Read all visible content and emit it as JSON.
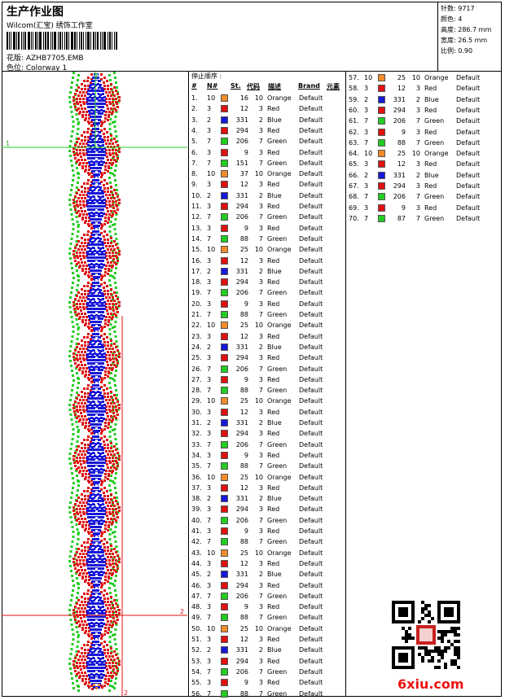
{
  "header": {
    "title": "生产作业图",
    "company": "Wilcom(汇宝) 绣饰工作室",
    "design_label": "花版: AZHB7705.EMB",
    "colorway_label": "色位: Colorway 1"
  },
  "stats": {
    "stitches": "针数: 9717",
    "colors": "颜色: 4",
    "height": "高度: 286.7 mm",
    "width": "宽度: 26.5 mm",
    "scale": "比例: 0.90"
  },
  "guides": {
    "top_green": "1",
    "mid_green": "1",
    "bottom_red_right": "2",
    "bottom_red_center": "2"
  },
  "table": {
    "title": "停止顺序 :",
    "col_num": "#",
    "col_n": "N#",
    "col_st": "St.",
    "col_code": "代码",
    "col_desc": "描述",
    "col_brand": "Brand",
    "col_elem": "元素"
  },
  "colors": {
    "Orange": "#f08c2c",
    "Red": "#e01010",
    "Blue": "#1818d8",
    "Green": "#22cc22"
  },
  "stops": [
    {
      "no": "1.",
      "n": "10",
      "code": "16",
      "st": "10",
      "desc": "Orange",
      "brand": "Default"
    },
    {
      "no": "2.",
      "n": "3",
      "code": "12",
      "st": "3",
      "desc": "Red",
      "brand": "Default"
    },
    {
      "no": "3.",
      "n": "2",
      "code": "331",
      "st": "2",
      "desc": "Blue",
      "brand": "Default"
    },
    {
      "no": "4.",
      "n": "3",
      "code": "294",
      "st": "3",
      "desc": "Red",
      "brand": "Default"
    },
    {
      "no": "5.",
      "n": "7",
      "code": "206",
      "st": "7",
      "desc": "Green",
      "brand": "Default"
    },
    {
      "no": "6.",
      "n": "3",
      "code": "9",
      "st": "3",
      "desc": "Red",
      "brand": "Default"
    },
    {
      "no": "7.",
      "n": "7",
      "code": "151",
      "st": "7",
      "desc": "Green",
      "brand": "Default"
    },
    {
      "no": "8.",
      "n": "10",
      "code": "37",
      "st": "10",
      "desc": "Orange",
      "brand": "Default"
    },
    {
      "no": "9.",
      "n": "3",
      "code": "12",
      "st": "3",
      "desc": "Red",
      "brand": "Default"
    },
    {
      "no": "10.",
      "n": "2",
      "code": "331",
      "st": "2",
      "desc": "Blue",
      "brand": "Default"
    },
    {
      "no": "11.",
      "n": "3",
      "code": "294",
      "st": "3",
      "desc": "Red",
      "brand": "Default"
    },
    {
      "no": "12.",
      "n": "7",
      "code": "206",
      "st": "7",
      "desc": "Green",
      "brand": "Default"
    },
    {
      "no": "13.",
      "n": "3",
      "code": "9",
      "st": "3",
      "desc": "Red",
      "brand": "Default"
    },
    {
      "no": "14.",
      "n": "7",
      "code": "88",
      "st": "7",
      "desc": "Green",
      "brand": "Default"
    },
    {
      "no": "15.",
      "n": "10",
      "code": "25",
      "st": "10",
      "desc": "Orange",
      "brand": "Default"
    },
    {
      "no": "16.",
      "n": "3",
      "code": "12",
      "st": "3",
      "desc": "Red",
      "brand": "Default"
    },
    {
      "no": "17.",
      "n": "2",
      "code": "331",
      "st": "2",
      "desc": "Blue",
      "brand": "Default"
    },
    {
      "no": "18.",
      "n": "3",
      "code": "294",
      "st": "3",
      "desc": "Red",
      "brand": "Default"
    },
    {
      "no": "19.",
      "n": "7",
      "code": "206",
      "st": "7",
      "desc": "Green",
      "brand": "Default"
    },
    {
      "no": "20.",
      "n": "3",
      "code": "9",
      "st": "3",
      "desc": "Red",
      "brand": "Default"
    },
    {
      "no": "21.",
      "n": "7",
      "code": "88",
      "st": "7",
      "desc": "Green",
      "brand": "Default"
    },
    {
      "no": "22.",
      "n": "10",
      "code": "25",
      "st": "10",
      "desc": "Orange",
      "brand": "Default"
    },
    {
      "no": "23.",
      "n": "3",
      "code": "12",
      "st": "3",
      "desc": "Red",
      "brand": "Default"
    },
    {
      "no": "24.",
      "n": "2",
      "code": "331",
      "st": "2",
      "desc": "Blue",
      "brand": "Default"
    },
    {
      "no": "25.",
      "n": "3",
      "code": "294",
      "st": "3",
      "desc": "Red",
      "brand": "Default"
    },
    {
      "no": "26.",
      "n": "7",
      "code": "206",
      "st": "7",
      "desc": "Green",
      "brand": "Default"
    },
    {
      "no": "27.",
      "n": "3",
      "code": "9",
      "st": "3",
      "desc": "Red",
      "brand": "Default"
    },
    {
      "no": "28.",
      "n": "7",
      "code": "88",
      "st": "7",
      "desc": "Green",
      "brand": "Default"
    },
    {
      "no": "29.",
      "n": "10",
      "code": "25",
      "st": "10",
      "desc": "Orange",
      "brand": "Default"
    },
    {
      "no": "30.",
      "n": "3",
      "code": "12",
      "st": "3",
      "desc": "Red",
      "brand": "Default"
    },
    {
      "no": "31.",
      "n": "2",
      "code": "331",
      "st": "2",
      "desc": "Blue",
      "brand": "Default"
    },
    {
      "no": "32.",
      "n": "3",
      "code": "294",
      "st": "3",
      "desc": "Red",
      "brand": "Default"
    },
    {
      "no": "33.",
      "n": "7",
      "code": "206",
      "st": "7",
      "desc": "Green",
      "brand": "Default"
    },
    {
      "no": "34.",
      "n": "3",
      "code": "9",
      "st": "3",
      "desc": "Red",
      "brand": "Default"
    },
    {
      "no": "35.",
      "n": "7",
      "code": "88",
      "st": "7",
      "desc": "Green",
      "brand": "Default"
    },
    {
      "no": "36.",
      "n": "10",
      "code": "25",
      "st": "10",
      "desc": "Orange",
      "brand": "Default"
    },
    {
      "no": "37.",
      "n": "3",
      "code": "12",
      "st": "3",
      "desc": "Red",
      "brand": "Default"
    },
    {
      "no": "38.",
      "n": "2",
      "code": "331",
      "st": "2",
      "desc": "Blue",
      "brand": "Default"
    },
    {
      "no": "39.",
      "n": "3",
      "code": "294",
      "st": "3",
      "desc": "Red",
      "brand": "Default"
    },
    {
      "no": "40.",
      "n": "7",
      "code": "206",
      "st": "7",
      "desc": "Green",
      "brand": "Default"
    },
    {
      "no": "41.",
      "n": "3",
      "code": "9",
      "st": "3",
      "desc": "Red",
      "brand": "Default"
    },
    {
      "no": "42.",
      "n": "7",
      "code": "88",
      "st": "7",
      "desc": "Green",
      "brand": "Default"
    },
    {
      "no": "43.",
      "n": "10",
      "code": "25",
      "st": "10",
      "desc": "Orange",
      "brand": "Default"
    },
    {
      "no": "44.",
      "n": "3",
      "code": "12",
      "st": "3",
      "desc": "Red",
      "brand": "Default"
    },
    {
      "no": "45.",
      "n": "2",
      "code": "331",
      "st": "2",
      "desc": "Blue",
      "brand": "Default"
    },
    {
      "no": "46.",
      "n": "3",
      "code": "294",
      "st": "3",
      "desc": "Red",
      "brand": "Default"
    },
    {
      "no": "47.",
      "n": "7",
      "code": "206",
      "st": "7",
      "desc": "Green",
      "brand": "Default"
    },
    {
      "no": "48.",
      "n": "3",
      "code": "9",
      "st": "3",
      "desc": "Red",
      "brand": "Default"
    },
    {
      "no": "49.",
      "n": "7",
      "code": "88",
      "st": "7",
      "desc": "Green",
      "brand": "Default"
    },
    {
      "no": "50.",
      "n": "10",
      "code": "25",
      "st": "10",
      "desc": "Orange",
      "brand": "Default"
    },
    {
      "no": "51.",
      "n": "3",
      "code": "12",
      "st": "3",
      "desc": "Red",
      "brand": "Default"
    },
    {
      "no": "52.",
      "n": "2",
      "code": "331",
      "st": "2",
      "desc": "Blue",
      "brand": "Default"
    },
    {
      "no": "53.",
      "n": "3",
      "code": "294",
      "st": "3",
      "desc": "Red",
      "brand": "Default"
    },
    {
      "no": "54.",
      "n": "7",
      "code": "206",
      "st": "7",
      "desc": "Green",
      "brand": "Default"
    },
    {
      "no": "55.",
      "n": "3",
      "code": "9",
      "st": "3",
      "desc": "Red",
      "brand": "Default"
    },
    {
      "no": "56.",
      "n": "7",
      "code": "88",
      "st": "7",
      "desc": "Green",
      "brand": "Default"
    },
    {
      "no": "57.",
      "n": "10",
      "code": "25",
      "st": "10",
      "desc": "Orange",
      "brand": "Default"
    },
    {
      "no": "58.",
      "n": "3",
      "code": "12",
      "st": "3",
      "desc": "Red",
      "brand": "Default"
    },
    {
      "no": "59.",
      "n": "2",
      "code": "331",
      "st": "2",
      "desc": "Blue",
      "brand": "Default"
    },
    {
      "no": "60.",
      "n": "3",
      "code": "294",
      "st": "3",
      "desc": "Red",
      "brand": "Default"
    },
    {
      "no": "61.",
      "n": "7",
      "code": "206",
      "st": "7",
      "desc": "Green",
      "brand": "Default"
    },
    {
      "no": "62.",
      "n": "3",
      "code": "9",
      "st": "3",
      "desc": "Red",
      "brand": "Default"
    },
    {
      "no": "63.",
      "n": "7",
      "code": "88",
      "st": "7",
      "desc": "Green",
      "brand": "Default"
    },
    {
      "no": "64.",
      "n": "10",
      "code": "25",
      "st": "10",
      "desc": "Orange",
      "brand": "Default"
    },
    {
      "no": "65.",
      "n": "3",
      "code": "12",
      "st": "3",
      "desc": "Red",
      "brand": "Default"
    },
    {
      "no": "66.",
      "n": "2",
      "code": "331",
      "st": "2",
      "desc": "Blue",
      "brand": "Default"
    },
    {
      "no": "67.",
      "n": "3",
      "code": "294",
      "st": "3",
      "desc": "Red",
      "brand": "Default"
    },
    {
      "no": "68.",
      "n": "7",
      "code": "206",
      "st": "7",
      "desc": "Green",
      "brand": "Default"
    },
    {
      "no": "69.",
      "n": "3",
      "code": "9",
      "st": "3",
      "desc": "Red",
      "brand": "Default"
    },
    {
      "no": "70.",
      "n": "7",
      "code": "87",
      "st": "7",
      "desc": "Green",
      "brand": "Default"
    }
  ],
  "watermark": "6xiu.com"
}
